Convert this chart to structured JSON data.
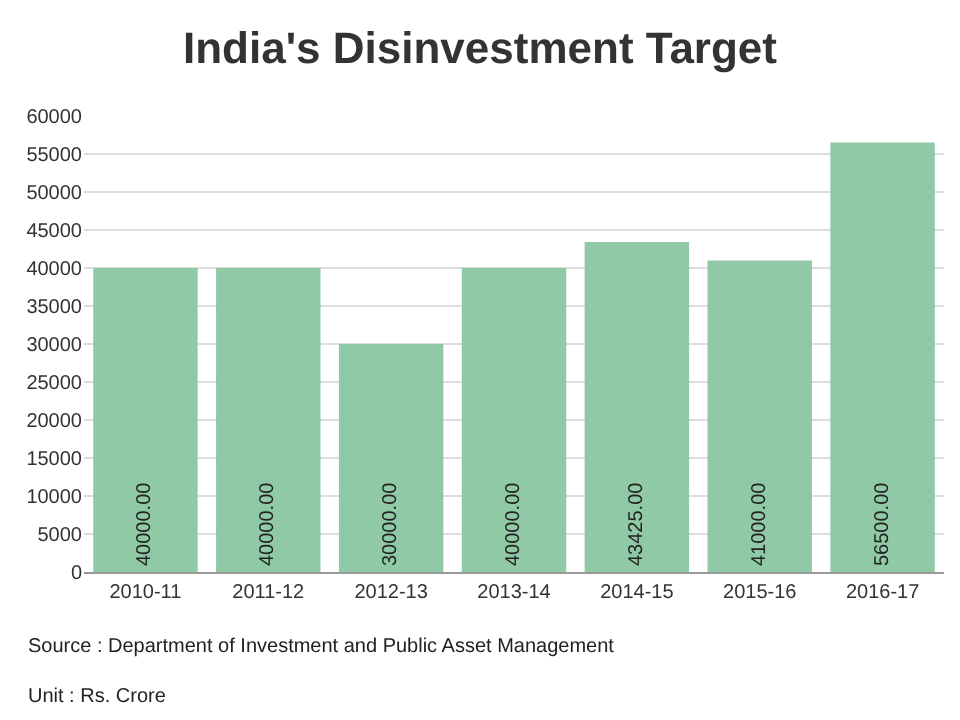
{
  "chart_data": {
    "type": "bar",
    "title": "India's Disinvestment Target",
    "categories": [
      "2010-11",
      "2011-12",
      "2012-13",
      "2013-14",
      "2014-15",
      "2015-16",
      "2016-17"
    ],
    "values": [
      40000,
      40000,
      30000,
      40000,
      43425,
      41000,
      56500
    ],
    "value_labels": [
      "40000.00",
      "40000.00",
      "30000.00",
      "40000.00",
      "43425.00",
      "41000.00",
      "56500.00"
    ],
    "color": "#8fc9a5",
    "ylim": [
      0,
      60000
    ],
    "yticks": [
      0,
      5000,
      10000,
      15000,
      20000,
      25000,
      30000,
      35000,
      40000,
      45000,
      50000,
      55000,
      60000
    ],
    "grid": "y",
    "annotations": [
      "Source : Department of Investment and Public Asset Management",
      "Unit : Rs. Crore"
    ]
  }
}
